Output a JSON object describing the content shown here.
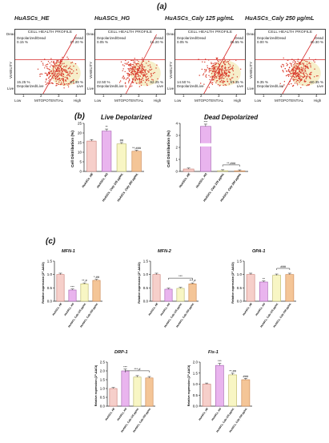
{
  "panel_a": "(a)",
  "panel_b": "(b)",
  "panel_c": "(c)",
  "flow": {
    "header": "CELL HEALTH PROFILE",
    "ylabel": "VIABILITY",
    "xlabel": "MITOPOTENTIAL",
    "dead_side": "Dead",
    "live_side": "Live",
    "low": "Low",
    "high": "High",
    "q_dep_dead": "Depolarized/Dead",
    "q_dead": "Dead",
    "q_dep_live": "Depolarized/Live",
    "q_live": "Live",
    "plots": [
      {
        "title": "HuASCs_HE",
        "dep_dead": "0.15 %",
        "dead": "27.20 %",
        "dep_live": "15.25 %",
        "live": "57.39 %"
      },
      {
        "title": "HuASCs_HG",
        "dep_dead": "0.05 %",
        "dead": "15.20 %",
        "dep_live": "22.50 %",
        "live": "62.25 %"
      },
      {
        "title": "HuASCs_Caly 125 µg/mL",
        "dep_dead": "0.05 %",
        "dead": "28.55 %",
        "dep_live": "14.50 %",
        "live": "57.35 %"
      },
      {
        "title": "HuASCs_Caly 250 µg/mL",
        "dep_dead": "0.00 %",
        "dead": "40.30 %",
        "dep_live": "9.35 %",
        "live": "50.35 %"
      }
    ]
  },
  "colors": {
    "he": "#f6cfca",
    "hg": "#e9b4ee",
    "c125": "#f8f6c4",
    "c250": "#f4c597",
    "dot": "#d93a2a",
    "gate": "#d62a2a"
  },
  "chart_data": [
    {
      "type": "bar",
      "title": "Live Depolarized",
      "ylabel": "Cell Distribution (%)",
      "ylim": [
        0,
        25
      ],
      "yticks": [
        "0",
        "5",
        "10",
        "15",
        "20",
        "25"
      ],
      "categories": [
        "HuASCs_HE",
        "HuASCs_HG",
        "HuASCs_Caly 125 µg/mL",
        "HuASCs_Caly 250 µg/mL"
      ],
      "values": [
        15.8,
        21.0,
        14.3,
        10.5
      ],
      "annotations": [
        "",
        "**",
        "##",
        "**,###"
      ]
    },
    {
      "type": "bar",
      "title": "Dead Depolarized",
      "ylabel": "Cell Distribution (%)",
      "ylim": [
        0,
        4
      ],
      "yticks": [
        "0",
        "1",
        "2",
        "3",
        "4"
      ],
      "categories": [
        "HuASCs_HE",
        "HuASCs_HG",
        "HuASCs_Caly 125 µg/mL",
        "HuASCs_Caly 250 µg/mL"
      ],
      "values": [
        0.2,
        3.75,
        0.06,
        0.05
      ],
      "annotations": [
        "",
        "***",
        "",
        ""
      ],
      "bracket": "**,###"
    },
    {
      "type": "bar",
      "title": "MFN-1",
      "ylabel": "Relative expression (2^-ΔΔCt)",
      "ylim": [
        0,
        1.5
      ],
      "yticks": [
        "0.0",
        "0.5",
        "1.0",
        "1.5"
      ],
      "categories": [
        "HuASCs_HE",
        "HuASCs_HG",
        "HuASCs_Caly 125 µg/mL",
        "HuASCs_Caly 250 µg/mL"
      ],
      "values": [
        1.0,
        0.42,
        0.65,
        0.78
      ],
      "annotations": [
        "",
        "***",
        "**,#",
        "*,##"
      ]
    },
    {
      "type": "bar",
      "title": "MFN-2",
      "ylabel": "Relative expression (2^-ΔΔCt)",
      "ylim": [
        0,
        1.5
      ],
      "yticks": [
        "0.0",
        "0.5",
        "1.0",
        "1.5"
      ],
      "categories": [
        "HuASCs_HE",
        "HuASCs_HG",
        "HuASCs_Caly 125 µg/mL",
        "HuASCs_Caly 250 µg/mL"
      ],
      "values": [
        1.0,
        0.45,
        0.48,
        0.65
      ],
      "annotations": [
        "",
        "",
        "",
        "***,#"
      ],
      "bracket": "***"
    },
    {
      "type": "bar",
      "title": "OPA-1",
      "ylabel": "Relative expression (2^-ΔΔCt)",
      "ylim": [
        0,
        1.5
      ],
      "yticks": [
        "0.0",
        "0.5",
        "1.0",
        "1.5"
      ],
      "categories": [
        "HuASCs_HE",
        "HuASCs_HG",
        "HuASCs_Caly 125 µg/mL",
        "HuASCs_Caly 250 µg/mL"
      ],
      "values": [
        1.0,
        0.72,
        0.97,
        1.0
      ],
      "annotations": [
        "",
        "**",
        "",
        ""
      ],
      "bracket": "###"
    },
    {
      "type": "bar",
      "title": "DRP-1",
      "ylabel": "Relative expression (2^-ΔΔCt)",
      "ylim": [
        0,
        2.5
      ],
      "yticks": [
        "0.0",
        "0.5",
        "1.0",
        "1.5",
        "2.0",
        "2.5"
      ],
      "categories": [
        "HuASCs_HE",
        "HuASCs_HG",
        "HuASCs_Caly 125 µg/mL",
        "HuASCs_Caly 250 µg/mL"
      ],
      "values": [
        1.0,
        2.0,
        1.65,
        1.6
      ],
      "annotations": [
        "",
        "***",
        "",
        ""
      ],
      "bracket": "***,#"
    },
    {
      "type": "bar",
      "title": "Fis-1",
      "ylabel": "Relative expression (2^-ΔΔCt)",
      "ylim": [
        0,
        2.0
      ],
      "yticks": [
        "0.0",
        "0.5",
        "1.0",
        "1.5",
        "2.0"
      ],
      "categories": [
        "HuASCs_HE",
        "HuASCs_HG",
        "HuASCs_Caly 125 µg/mL",
        "HuASCs_Caly 250 µg/mL"
      ],
      "values": [
        1.0,
        1.85,
        1.42,
        1.2
      ],
      "annotations": [
        "",
        "***",
        "**,##",
        "###"
      ]
    }
  ]
}
